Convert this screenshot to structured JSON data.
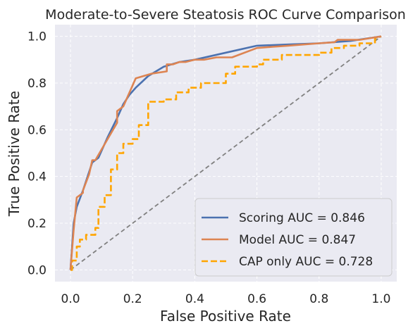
{
  "chart_data": {
    "type": "line",
    "title": "Moderate-to-Severe Steatosis ROC Curve Comparison",
    "xlabel": "False Positive Rate",
    "ylabel": "True Positive Rate",
    "xlim": [
      -0.05,
      1.05
    ],
    "ylim": [
      -0.05,
      1.05
    ],
    "xticks": [
      0.0,
      0.2,
      0.4,
      0.6,
      0.8,
      1.0
    ],
    "yticks": [
      0.0,
      0.2,
      0.4,
      0.6,
      0.8,
      1.0
    ],
    "xtick_labels": [
      "0.0",
      "0.2",
      "0.4",
      "0.6",
      "0.8",
      "1.0"
    ],
    "ytick_labels": [
      "0.0",
      "0.2",
      "0.4",
      "0.6",
      "0.8",
      "1.0"
    ],
    "grid": true,
    "legend_position": "bottom-right",
    "series": [
      {
        "name": "Scoring AUC = 0.846",
        "color": "#4c72b0",
        "style": "solid",
        "x": [
          0.0,
          0.01,
          0.02,
          0.04,
          0.07,
          0.09,
          0.12,
          0.15,
          0.17,
          0.19,
          0.21,
          0.25,
          0.3,
          0.35,
          0.4,
          0.5,
          0.6,
          0.7,
          0.8,
          0.9,
          1.0
        ],
        "y": [
          0.0,
          0.2,
          0.27,
          0.34,
          0.46,
          0.48,
          0.57,
          0.65,
          0.71,
          0.75,
          0.78,
          0.83,
          0.87,
          0.89,
          0.9,
          0.93,
          0.96,
          0.965,
          0.97,
          0.98,
          1.0
        ]
      },
      {
        "name": "Model AUC = 0.847",
        "color": "#dd8452",
        "style": "solid",
        "x": [
          0.0,
          0.01,
          0.02,
          0.04,
          0.04,
          0.06,
          0.07,
          0.08,
          0.15,
          0.15,
          0.17,
          0.19,
          0.21,
          0.26,
          0.31,
          0.31,
          0.33,
          0.35,
          0.37,
          0.4,
          0.43,
          0.47,
          0.52,
          0.6,
          0.65,
          0.7,
          0.75,
          0.8,
          0.85,
          0.86,
          0.93,
          1.0
        ],
        "y": [
          0.0,
          0.17,
          0.31,
          0.33,
          0.34,
          0.41,
          0.47,
          0.47,
          0.63,
          0.68,
          0.7,
          0.76,
          0.82,
          0.84,
          0.85,
          0.88,
          0.88,
          0.89,
          0.89,
          0.9,
          0.9,
          0.91,
          0.91,
          0.95,
          0.955,
          0.96,
          0.965,
          0.97,
          0.975,
          0.985,
          0.985,
          1.0
        ]
      },
      {
        "name": "CAP only AUC = 0.728",
        "color": "#ffa500",
        "style": "dashed",
        "x": [
          0.0,
          0.005,
          0.005,
          0.02,
          0.02,
          0.03,
          0.03,
          0.05,
          0.05,
          0.08,
          0.08,
          0.09,
          0.09,
          0.11,
          0.11,
          0.13,
          0.13,
          0.15,
          0.15,
          0.17,
          0.17,
          0.2,
          0.2,
          0.22,
          0.22,
          0.25,
          0.25,
          0.3,
          0.3,
          0.34,
          0.34,
          0.38,
          0.38,
          0.42,
          0.42,
          0.5,
          0.5,
          0.53,
          0.53,
          0.6,
          0.6,
          0.62,
          0.62,
          0.68,
          0.68,
          0.8,
          0.8,
          0.84,
          0.84,
          0.88,
          0.88,
          0.93,
          0.93,
          0.98,
          0.98,
          1.0
        ],
        "y": [
          0.0,
          0.0,
          0.04,
          0.04,
          0.1,
          0.1,
          0.13,
          0.13,
          0.15,
          0.15,
          0.18,
          0.18,
          0.27,
          0.27,
          0.32,
          0.32,
          0.43,
          0.43,
          0.5,
          0.5,
          0.54,
          0.54,
          0.56,
          0.56,
          0.62,
          0.62,
          0.72,
          0.72,
          0.73,
          0.73,
          0.76,
          0.76,
          0.78,
          0.78,
          0.8,
          0.8,
          0.84,
          0.84,
          0.87,
          0.87,
          0.88,
          0.88,
          0.9,
          0.9,
          0.92,
          0.92,
          0.93,
          0.93,
          0.95,
          0.95,
          0.96,
          0.96,
          0.97,
          0.97,
          0.99,
          1.0
        ]
      },
      {
        "name": "",
        "color": "#808080",
        "style": "dashed",
        "x": [
          0.0,
          1.0
        ],
        "y": [
          0.0,
          1.0
        ]
      }
    ]
  }
}
